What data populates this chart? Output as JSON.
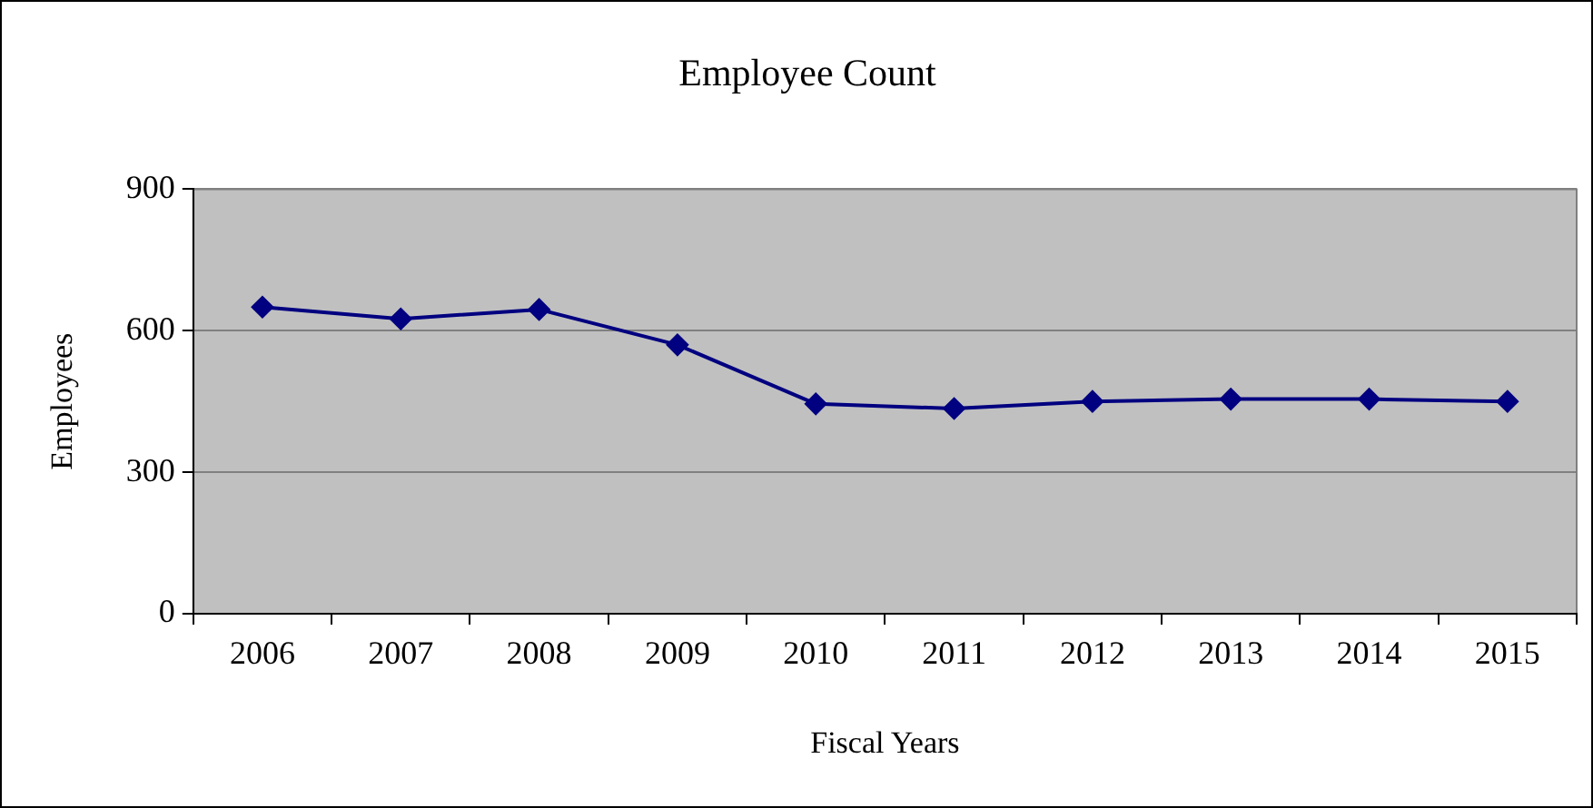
{
  "chart_data": {
    "type": "line",
    "title": "Employee Count",
    "xlabel": "Fiscal Years",
    "ylabel": "Employees",
    "categories": [
      "2006",
      "2007",
      "2008",
      "2009",
      "2010",
      "2011",
      "2012",
      "2013",
      "2014",
      "2015"
    ],
    "series": [
      {
        "color": "#000080",
        "values": [
          650,
          625,
          645,
          570,
          445,
          435,
          450,
          455,
          455,
          450
        ]
      }
    ],
    "ylim": [
      0,
      900
    ],
    "yticks": [
      0,
      300,
      600,
      900
    ],
    "grid": "y",
    "legend": false,
    "marker": "diamond",
    "line_style": "solid"
  }
}
